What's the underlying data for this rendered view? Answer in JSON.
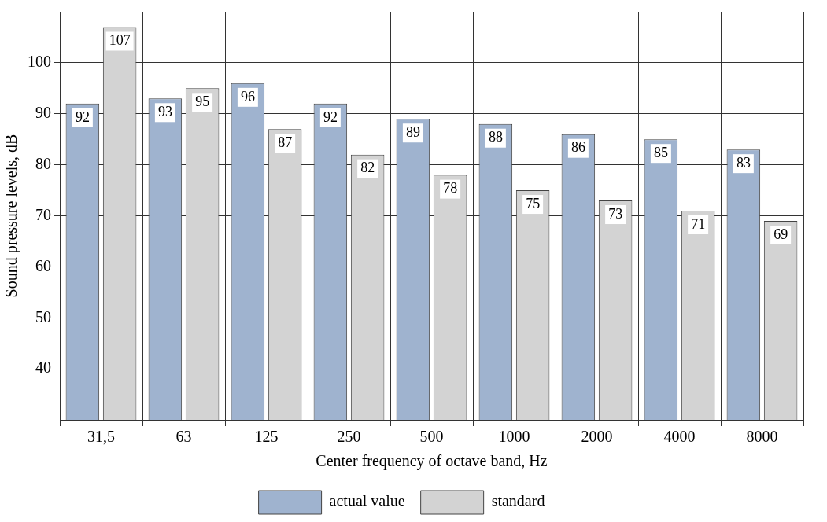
{
  "chart_data": {
    "type": "bar",
    "xlabel": "Center frequency of octave band, Hz",
    "ylabel": "Sound pressure levels, dB",
    "categories": [
      "31,5",
      "63",
      "125",
      "250",
      "500",
      "1000",
      "2000",
      "4000",
      "8000"
    ],
    "series": [
      {
        "name": "actual value",
        "color": "#9fb3cf",
        "values": [
          92,
          93,
          96,
          92,
          89,
          88,
          86,
          85,
          83
        ]
      },
      {
        "name": "standard",
        "color": "#d3d3d3",
        "values": [
          107,
          95,
          87,
          82,
          78,
          75,
          73,
          71,
          69
        ]
      }
    ],
    "ylim": [
      30,
      110
    ],
    "yticks": [
      40,
      50,
      60,
      70,
      80,
      90,
      100
    ],
    "grid": true,
    "legend": "bottom",
    "data_labels": true
  }
}
